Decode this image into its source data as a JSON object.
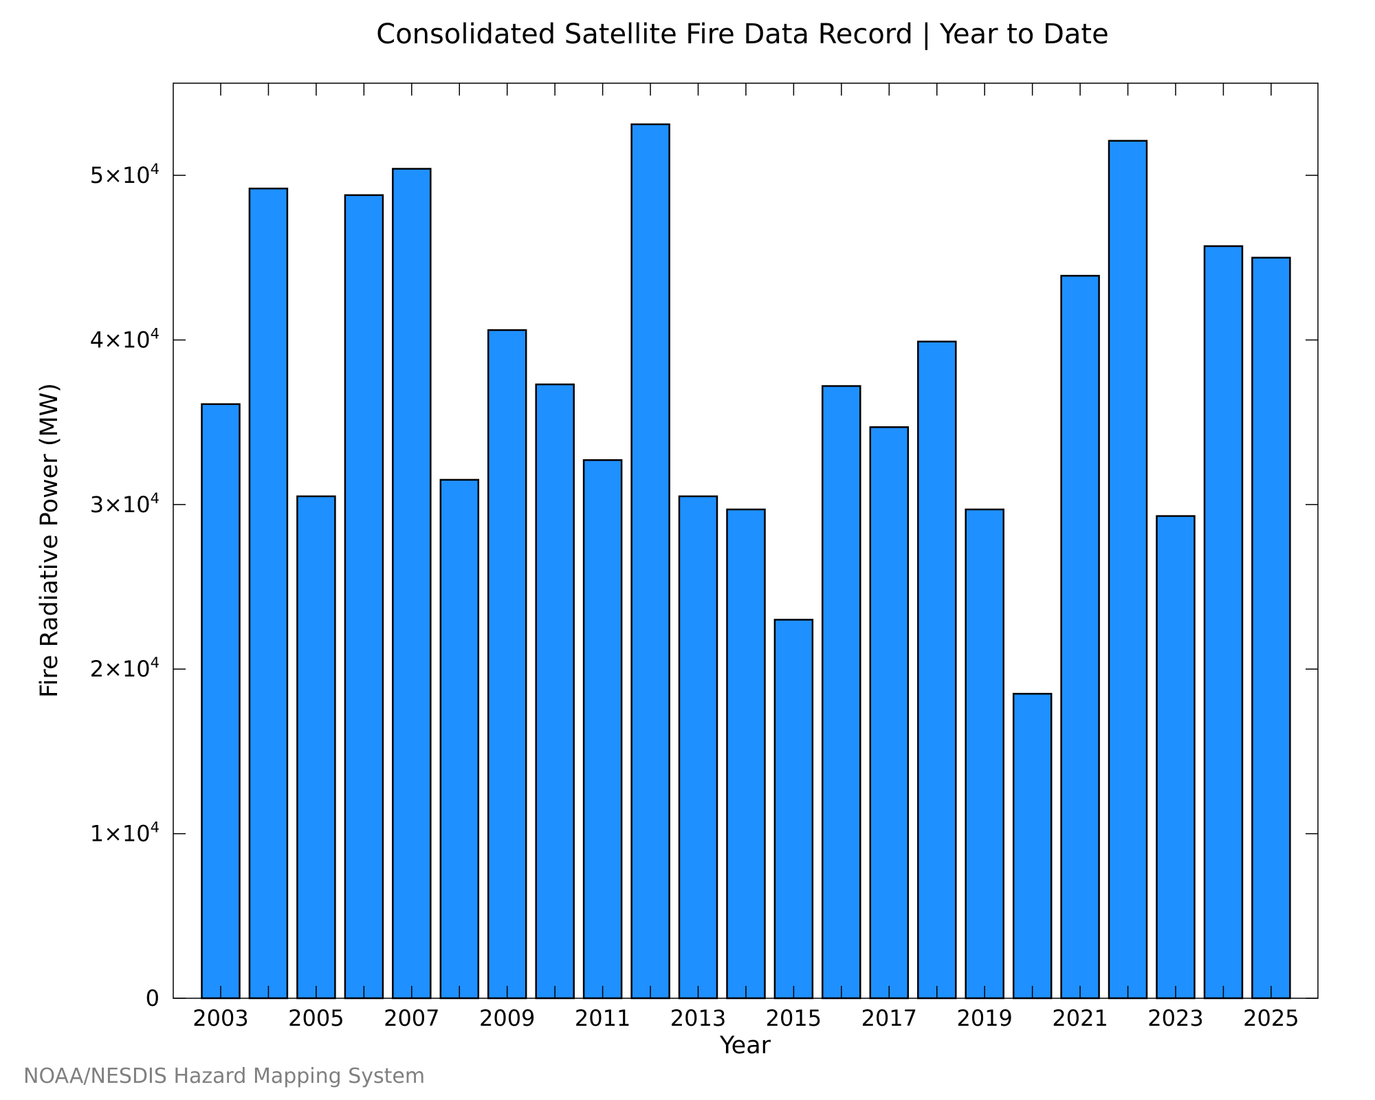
{
  "chart_data": {
    "type": "bar",
    "title": "Consolidated Satellite Fire Data Record | Year to Date",
    "xlabel": "Year",
    "ylabel": "Fire Radiative Power (MW)",
    "credit": "NOAA/NESDIS Hazard Mapping System",
    "ylim": [
      0,
      55600
    ],
    "yticks": [
      {
        "value": 0,
        "mant": "0",
        "exp": ""
      },
      {
        "value": 10000,
        "mant": "1×10",
        "exp": "4"
      },
      {
        "value": 20000,
        "mant": "2×10",
        "exp": "4"
      },
      {
        "value": 30000,
        "mant": "3×10",
        "exp": "4"
      },
      {
        "value": 40000,
        "mant": "4×10",
        "exp": "4"
      },
      {
        "value": 50000,
        "mant": "5×10",
        "exp": "4"
      }
    ],
    "xtick_labels": [
      "2003",
      "2005",
      "2007",
      "2009",
      "2011",
      "2013",
      "2015",
      "2017",
      "2019",
      "2021",
      "2023",
      "2025"
    ],
    "categories": [
      "2003",
      "2004",
      "2005",
      "2006",
      "2007",
      "2008",
      "2009",
      "2010",
      "2011",
      "2012",
      "2013",
      "2014",
      "2015",
      "2016",
      "2017",
      "2018",
      "2019",
      "2020",
      "2021",
      "2022",
      "2023",
      "2024",
      "2025"
    ],
    "values": [
      36100,
      49200,
      30500,
      48800,
      50400,
      31500,
      40600,
      37300,
      32700,
      53100,
      30500,
      29700,
      23000,
      37200,
      34700,
      39900,
      29700,
      18500,
      43900,
      52100,
      29300,
      45700,
      45000
    ],
    "bar_color": "#1E90FF",
    "grid": false,
    "legend": "none"
  }
}
